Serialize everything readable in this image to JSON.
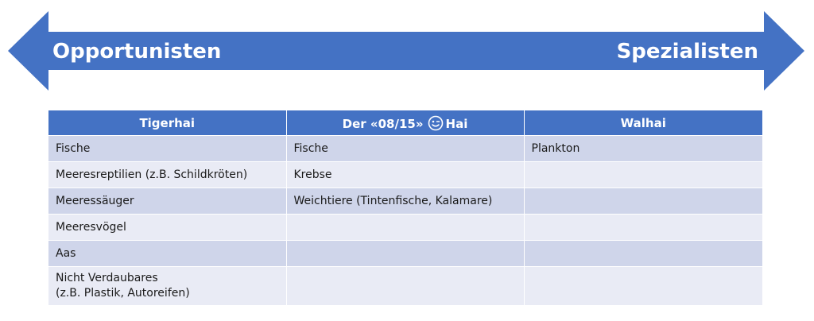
{
  "arrow": {
    "color": "#4472c4",
    "left_label": "Opportunisten",
    "right_label": "Spezialisten"
  },
  "table": {
    "headers": {
      "col1": "Tigerhai",
      "col2_pre": "Der «08/15»",
      "col2_post": "Hai",
      "col2_icon": "winking-smiley-icon",
      "col3": "Walhai"
    },
    "rows": [
      {
        "c1": "Fische",
        "c2": "Fische",
        "c3": "Plankton"
      },
      {
        "c1": "Meeresreptilien  (z.B. Schildkröten)",
        "c2": "Krebse",
        "c3": ""
      },
      {
        "c1": "Meeressäuger",
        "c2": "Weichtiere (Tintenfische,  Kalamare)",
        "c3": ""
      },
      {
        "c1": "Meeresvögel",
        "c2": "",
        "c3": ""
      },
      {
        "c1": "Aas",
        "c2": "",
        "c3": ""
      },
      {
        "c1_line1": "Nicht Verdaubares",
        "c1_line2": "(z.B. Plastik, Autoreifen)",
        "c2": "",
        "c3": ""
      }
    ],
    "header_color": "#4472c4",
    "band_dark": "#cfd5ea",
    "band_light": "#e9ebf5"
  }
}
